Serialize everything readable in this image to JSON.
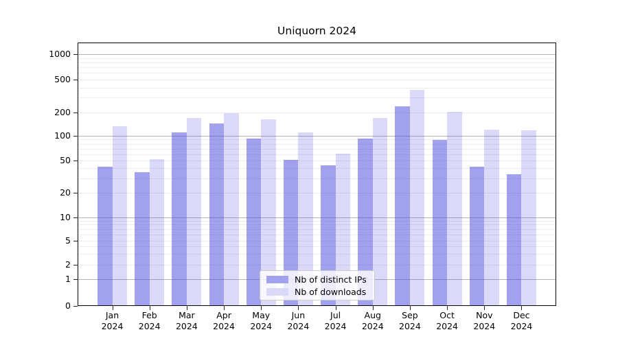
{
  "title": "Uniquorn 2024",
  "chart_data": {
    "type": "bar",
    "title": "Uniquorn 2024",
    "categories": [
      "Jan 2024",
      "Feb 2024",
      "Mar 2024",
      "Apr 2024",
      "May 2024",
      "Jun 2024",
      "Jul 2024",
      "Aug 2024",
      "Sep 2024",
      "Oct 2024",
      "Nov 2024",
      "Dec 2024"
    ],
    "series": [
      {
        "name": "Nb of distinct IPs",
        "legend_color": "#a2a2ee",
        "fill": "rgba(68,68,221,0.5)",
        "values": [
          41,
          35,
          108,
          140,
          90,
          50,
          43,
          90,
          230,
          87,
          41,
          33
        ]
      },
      {
        "name": "Nb of downloads",
        "legend_color": "#dadaf8",
        "fill": "rgba(68,68,221,0.2)",
        "values": [
          130,
          51,
          165,
          190,
          160,
          108,
          59,
          165,
          370,
          200,
          118,
          116
        ]
      }
    ],
    "yscale": "symlog",
    "y_ticks": [
      0,
      1,
      2,
      5,
      10,
      20,
      50,
      100,
      200,
      500,
      1000
    ],
    "ylim": [
      0,
      1400
    ],
    "xlabel": "",
    "ylabel": "",
    "grid": true,
    "legend_position": "lower center"
  },
  "legend": {
    "items": [
      {
        "label": "Nb of distinct IPs",
        "color": "#a2a2ee"
      },
      {
        "label": "Nb of downloads",
        "color": "#dadaf8"
      }
    ]
  },
  "colors": {
    "grid_major": "#b3b3b3",
    "grid_minor": "#ececec",
    "spine": "#000000",
    "text": "#000000",
    "background": "#ffffff"
  }
}
